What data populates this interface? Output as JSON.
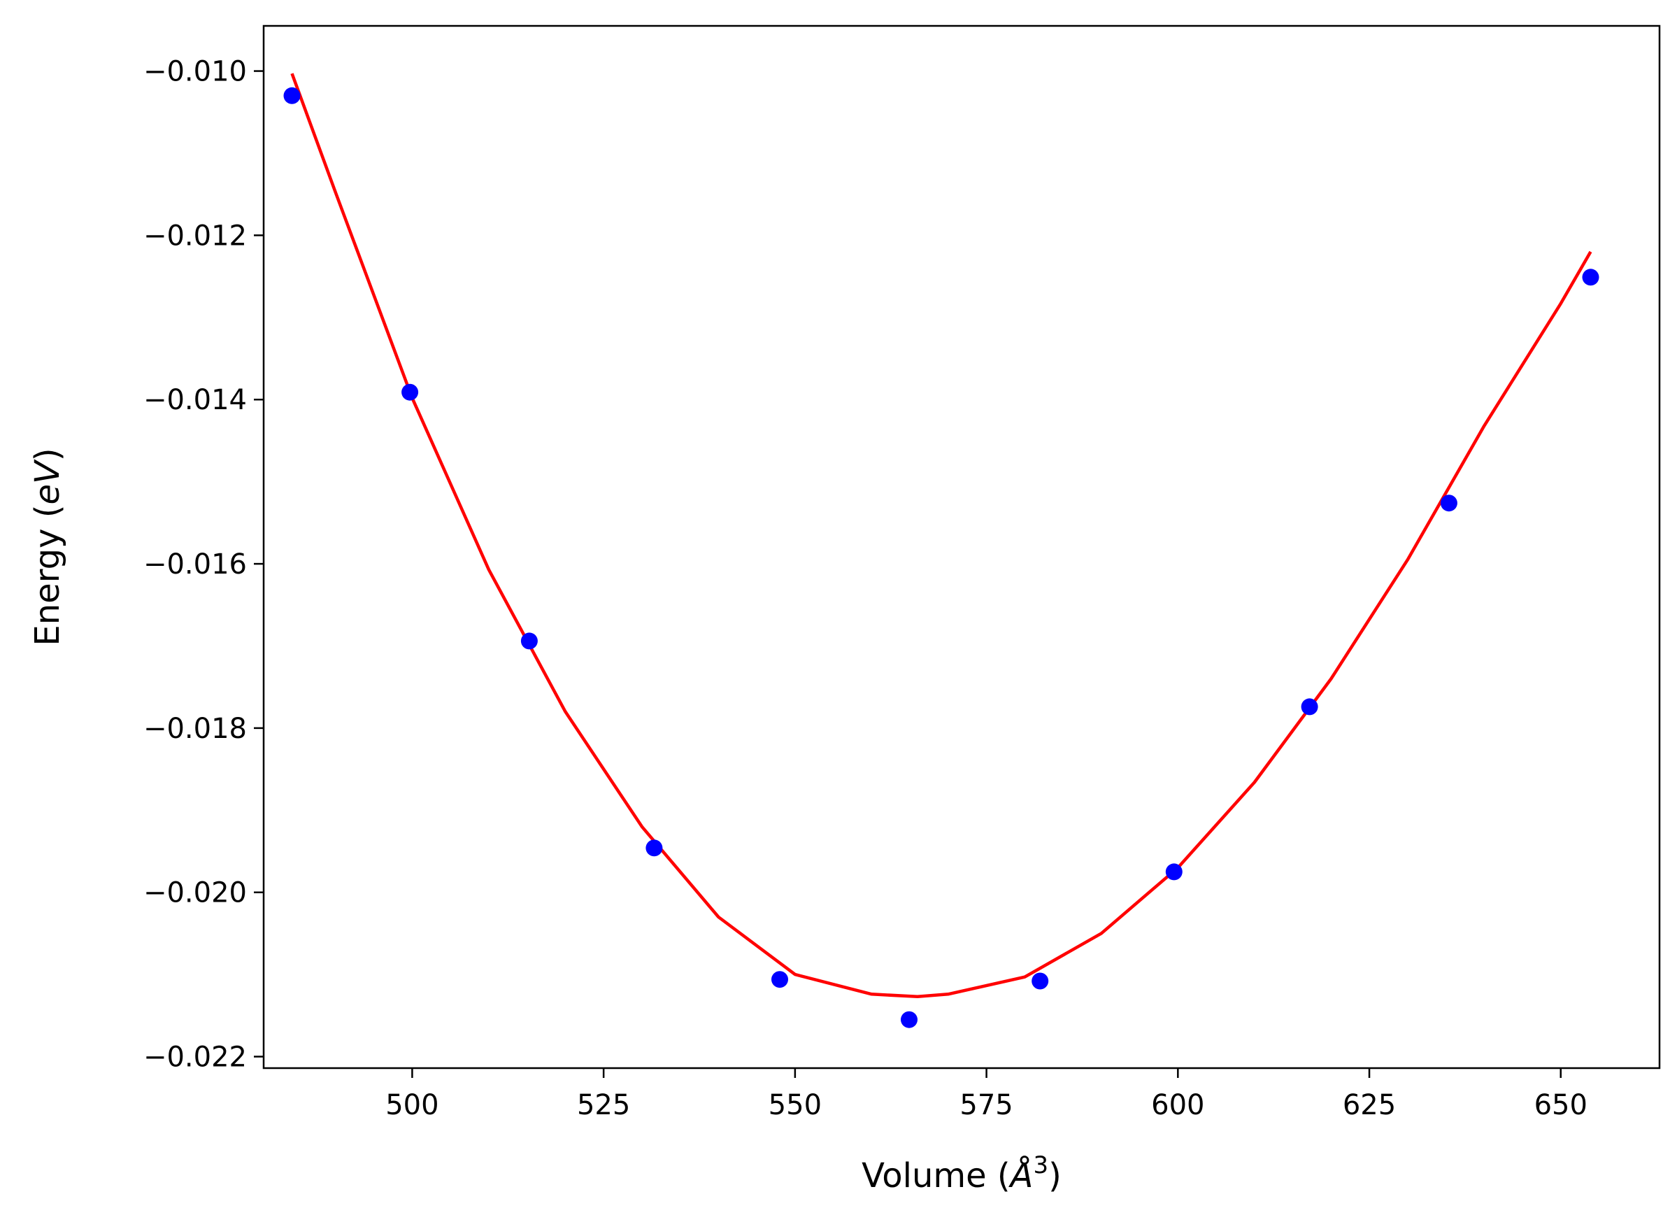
{
  "chart_data": {
    "type": "scatter",
    "title": "",
    "xlabel": "Volume (Å³)",
    "ylabel": "Energy (eV)",
    "xlabel_parts": {
      "pre": "Volume (",
      "var": "Å",
      "sup": "3",
      "post": ")"
    },
    "ylabel_parts": {
      "pre": "Energy (",
      "var": "eV",
      "post": ")"
    },
    "xlim": [
      480.6,
      662.9
    ],
    "ylim": [
      -0.02214,
      -0.00945
    ],
    "x_ticks": [
      {
        "value": 500,
        "label": "500"
      },
      {
        "value": 525,
        "label": "525"
      },
      {
        "value": 550,
        "label": "550"
      },
      {
        "value": 575,
        "label": "575"
      },
      {
        "value": 600,
        "label": "600"
      },
      {
        "value": 625,
        "label": "625"
      },
      {
        "value": 650,
        "label": "650"
      }
    ],
    "y_ticks": [
      {
        "value": -0.01,
        "label": "−0.010"
      },
      {
        "value": -0.012,
        "label": "−0.012"
      },
      {
        "value": -0.014,
        "label": "−0.014"
      },
      {
        "value": -0.016,
        "label": "−0.016"
      },
      {
        "value": -0.018,
        "label": "−0.018"
      },
      {
        "value": -0.02,
        "label": "−0.020"
      },
      {
        "value": -0.022,
        "label": "−0.022"
      }
    ],
    "grid": false,
    "series": [
      {
        "kind": "points",
        "color": "#0000ff",
        "x": [
          484.3,
          499.7,
          515.3,
          531.6,
          548.0,
          564.9,
          582.0,
          599.5,
          617.2,
          635.4,
          653.9
        ],
        "y": [
          -0.0103,
          -0.01391,
          -0.01694,
          -0.01946,
          -0.02106,
          -0.02155,
          -0.02108,
          -0.01975,
          -0.01774,
          -0.01526,
          -0.01251
        ]
      },
      {
        "kind": "fit-curve",
        "color": "#ff0000",
        "x": [
          484.3,
          490,
          500,
          510,
          520,
          530,
          540,
          550,
          560,
          566,
          570,
          580,
          590,
          600,
          610,
          620,
          630,
          640,
          650,
          653.9
        ],
        "y": [
          -0.01003,
          -0.01148,
          -0.01398,
          -0.01607,
          -0.0178,
          -0.0192,
          -0.0203,
          -0.021,
          -0.02124,
          -0.02127,
          -0.02124,
          -0.02103,
          -0.0205,
          -0.0197,
          -0.01866,
          -0.0174,
          -0.01595,
          -0.01432,
          -0.01283,
          -0.0122
        ]
      }
    ]
  }
}
